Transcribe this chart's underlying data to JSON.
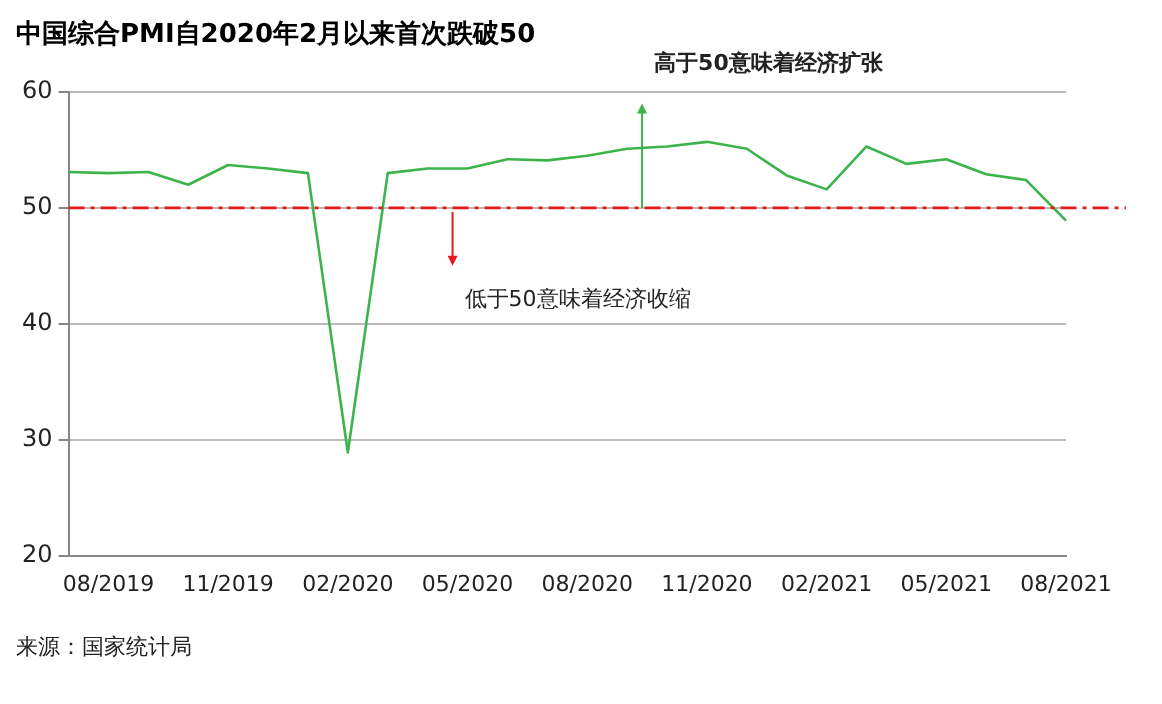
{
  "chart_data": {
    "type": "line",
    "title": "中国综合PMI自2020年2月以来首次跌破50",
    "categories": [
      null,
      "08/2019",
      null,
      null,
      "11/2019",
      null,
      null,
      "02/2020",
      null,
      null,
      "05/2020",
      null,
      null,
      "08/2020",
      null,
      null,
      "11/2020",
      null,
      null,
      "02/2021",
      null,
      null,
      "05/2021",
      null,
      null,
      "08/2021"
    ],
    "series": [
      {
        "color": "#3cb44b",
        "values": [
          53.1,
          53.0,
          53.1,
          52.0,
          53.7,
          53.4,
          53.0,
          28.9,
          53.0,
          53.4,
          53.4,
          54.2,
          54.1,
          54.5,
          55.1,
          55.3,
          55.7,
          55.1,
          52.8,
          51.6,
          55.3,
          53.8,
          54.2,
          52.9,
          52.4,
          48.9
        ]
      }
    ],
    "ylim": [
      20,
      60
    ],
    "yticks": [
      20,
      30,
      40,
      50,
      60
    ],
    "grid": "y",
    "legend": false,
    "marker": "none",
    "line_style": "solid",
    "ref_lines": [
      {
        "axis": "y",
        "value": 50,
        "color": "#e31a1c",
        "line_style": "dashdot"
      }
    ],
    "annotations": [
      "高于50意味着经济扩张",
      "低于50意味着经济收缩",
      "来源：国家统计局"
    ]
  }
}
